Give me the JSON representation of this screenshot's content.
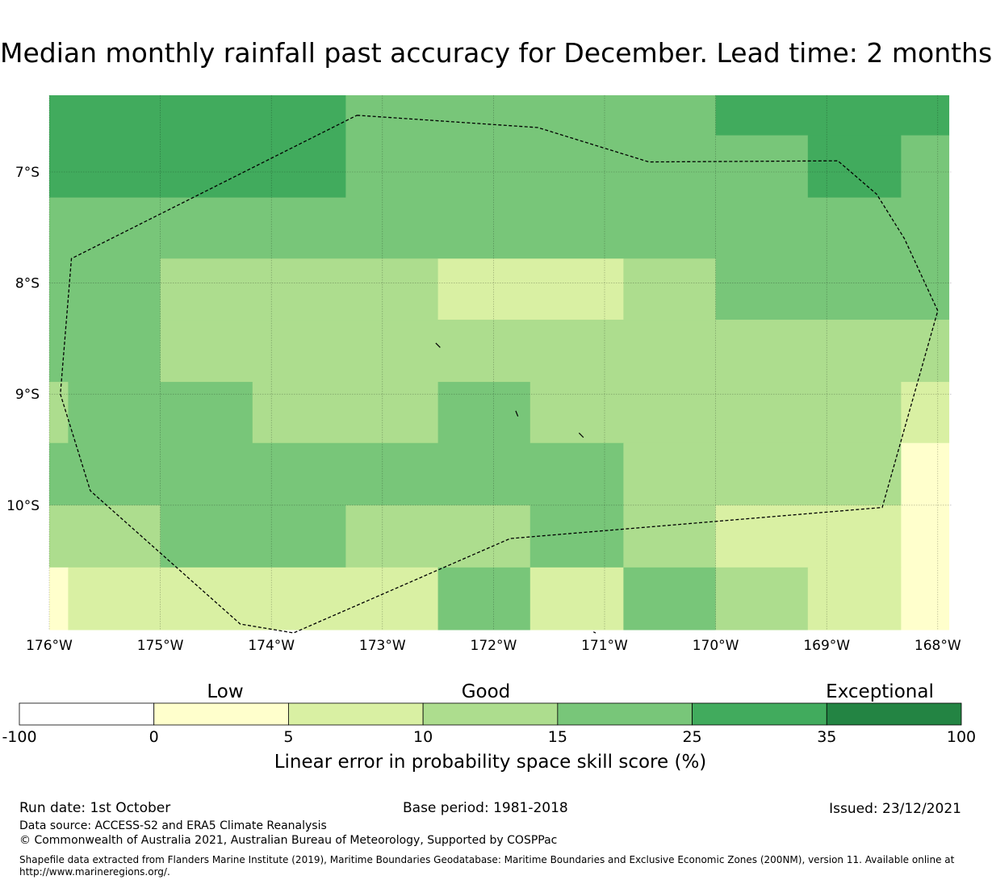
{
  "title": "Median monthly rainfall past accuracy for December. Lead time: 2 months",
  "map": {
    "lon_range": [
      -176,
      -168
    ],
    "lat_range": [
      -6.3,
      -11.2
    ],
    "x_ticks": [
      {
        "value": -176,
        "label": "176°W"
      },
      {
        "value": -175,
        "label": "175°W"
      },
      {
        "value": -174,
        "label": "174°W"
      },
      {
        "value": -173,
        "label": "173°W"
      },
      {
        "value": -172,
        "label": "172°W"
      },
      {
        "value": -171,
        "label": "171°W"
      },
      {
        "value": -170,
        "label": "170°W"
      },
      {
        "value": -169,
        "label": "169°W"
      },
      {
        "value": -168,
        "label": "168°W"
      }
    ],
    "y_ticks": [
      {
        "value": -7,
        "label": "7°S"
      },
      {
        "value": -8,
        "label": "8°S"
      },
      {
        "value": -9,
        "label": "9°S"
      },
      {
        "value": -10,
        "label": "10°S"
      }
    ],
    "skill_cells": [
      {
        "lon": [
          -176,
          -173.33
        ],
        "lat": [
          -6.3,
          -7.23
        ],
        "skill": 30
      },
      {
        "lon": [
          -173.33,
          -170
        ],
        "lat": [
          -6.3,
          -7.23
        ],
        "skill": 20
      },
      {
        "lon": [
          -170,
          -167.9
        ],
        "lat": [
          -6.3,
          -6.67
        ],
        "skill": 30
      },
      {
        "lon": [
          -170,
          -169.17
        ],
        "lat": [
          -6.67,
          -7.23
        ],
        "skill": 20
      },
      {
        "lon": [
          -169.17,
          -168.33
        ],
        "lat": [
          -6.67,
          -7.23
        ],
        "skill": 30
      },
      {
        "lon": [
          -168.33,
          -167.9
        ],
        "lat": [
          -6.67,
          -7.23
        ],
        "skill": 20
      },
      {
        "lon": [
          -176,
          -167.9
        ],
        "lat": [
          -7.23,
          -7.78
        ],
        "skill": 20
      },
      {
        "lon": [
          -176,
          -175
        ],
        "lat": [
          -7.78,
          -8.89
        ],
        "skill": 20
      },
      {
        "lon": [
          -175,
          -172.5
        ],
        "lat": [
          -7.78,
          -8.33
        ],
        "skill": 12
      },
      {
        "lon": [
          -172.5,
          -170.83
        ],
        "lat": [
          -7.78,
          -8.33
        ],
        "skill": 7
      },
      {
        "lon": [
          -170.83,
          -170
        ],
        "lat": [
          -7.78,
          -8.33
        ],
        "skill": 12
      },
      {
        "lon": [
          -170,
          -167.9
        ],
        "lat": [
          -7.78,
          -8.33
        ],
        "skill": 20
      },
      {
        "lon": [
          -175,
          -167.9
        ],
        "lat": [
          -8.33,
          -8.89
        ],
        "skill": 12
      },
      {
        "lon": [
          -176,
          -175.83
        ],
        "lat": [
          -8.89,
          -9.44
        ],
        "skill": 12
      },
      {
        "lon": [
          -175.83,
          -174.17
        ],
        "lat": [
          -8.89,
          -9.44
        ],
        "skill": 20
      },
      {
        "lon": [
          -174.17,
          -172.5
        ],
        "lat": [
          -8.89,
          -9.44
        ],
        "skill": 12
      },
      {
        "lon": [
          -172.5,
          -171.67
        ],
        "lat": [
          -8.89,
          -9.44
        ],
        "skill": 20
      },
      {
        "lon": [
          -171.67,
          -168.33
        ],
        "lat": [
          -8.89,
          -9.44
        ],
        "skill": 12
      },
      {
        "lon": [
          -168.33,
          -167.9
        ],
        "lat": [
          -8.89,
          -9.44
        ],
        "skill": 7
      },
      {
        "lon": [
          -176,
          -170.83
        ],
        "lat": [
          -9.44,
          -10
        ],
        "skill": 20
      },
      {
        "lon": [
          -170.83,
          -168.33
        ],
        "lat": [
          -9.44,
          -10
        ],
        "skill": 12
      },
      {
        "lon": [
          -168.33,
          -167.9
        ],
        "lat": [
          -9.44,
          -10
        ],
        "skill": 2
      },
      {
        "lon": [
          -176,
          -175
        ],
        "lat": [
          -10,
          -10.56
        ],
        "skill": 12
      },
      {
        "lon": [
          -175,
          -173.33
        ],
        "lat": [
          -10,
          -10.56
        ],
        "skill": 20
      },
      {
        "lon": [
          -173.33,
          -171.67
        ],
        "lat": [
          -10,
          -10.56
        ],
        "skill": 12
      },
      {
        "lon": [
          -171.67,
          -170.83
        ],
        "lat": [
          -10,
          -10.56
        ],
        "skill": 20
      },
      {
        "lon": [
          -170.83,
          -170
        ],
        "lat": [
          -10,
          -10.56
        ],
        "skill": 12
      },
      {
        "lon": [
          -170,
          -168.33
        ],
        "lat": [
          -10,
          -10.56
        ],
        "skill": 7
      },
      {
        "lon": [
          -168.33,
          -167.9
        ],
        "lat": [
          -10,
          -10.56
        ],
        "skill": 2
      },
      {
        "lon": [
          -176,
          -175.83
        ],
        "lat": [
          -10.56,
          -11.2
        ],
        "skill": 2
      },
      {
        "lon": [
          -175.83,
          -172.5
        ],
        "lat": [
          -10.56,
          -11.2
        ],
        "skill": 7
      },
      {
        "lon": [
          -172.5,
          -171.67
        ],
        "lat": [
          -10.56,
          -11.2
        ],
        "skill": 20
      },
      {
        "lon": [
          -171.67,
          -170.83
        ],
        "lat": [
          -10.56,
          -11.2
        ],
        "skill": 7
      },
      {
        "lon": [
          -170.83,
          -170
        ],
        "lat": [
          -10.56,
          -11.2
        ],
        "skill": 20
      },
      {
        "lon": [
          -170,
          -169.17
        ],
        "lat": [
          -10.56,
          -11.2
        ],
        "skill": 12
      },
      {
        "lon": [
          -169.17,
          -168.33
        ],
        "lat": [
          -10.56,
          -11.2
        ],
        "skill": 7
      },
      {
        "lon": [
          -168.33,
          -167.9
        ],
        "lat": [
          -10.56,
          -11.2
        ],
        "skill": 2
      }
    ],
    "eez_boundary": [
      [
        -173.23,
        -6.49
      ],
      [
        -171.6,
        -6.6
      ],
      [
        -170.6,
        -6.91
      ],
      [
        -168.9,
        -6.9
      ],
      [
        -168.55,
        -7.2
      ],
      [
        -168.3,
        -7.6
      ],
      [
        -168.0,
        -8.25
      ],
      [
        -168.5,
        -10.02
      ],
      [
        -171.85,
        -10.3
      ],
      [
        -173.8,
        -11.15
      ],
      [
        -174.28,
        -11.07
      ],
      [
        -175.63,
        -9.87
      ],
      [
        -175.9,
        -9.0
      ],
      [
        -175.8,
        -7.78
      ],
      [
        -173.23,
        -6.49
      ]
    ],
    "islands": [
      [
        [
          -172.52,
          -8.54
        ],
        [
          -172.48,
          -8.58
        ]
      ],
      [
        [
          -171.8,
          -9.15
        ],
        [
          -171.78,
          -9.2
        ]
      ],
      [
        [
          -171.23,
          -9.35
        ],
        [
          -171.19,
          -9.39
        ]
      ],
      [
        [
          -171.1,
          -11.14
        ],
        [
          -171.08,
          -11.15
        ]
      ]
    ]
  },
  "colorbar": {
    "bounds": [
      "-100",
      "0",
      "5",
      "10",
      "15",
      "25",
      "35",
      "100"
    ],
    "colors": [
      "#ffffff",
      "#ffffcc",
      "#d9f0a3",
      "#addd8e",
      "#78c679",
      "#41ab5d",
      "#238443"
    ],
    "categories": {
      "low": "Low",
      "good": "Good",
      "exceptional": "Exceptional"
    },
    "label": "Linear error in probability space skill score (%)"
  },
  "footer": {
    "run_date": "Run date: 1st October",
    "base_period": "Base period: 1981-2018",
    "issued": "Issued: 23/12/2021",
    "data_source": "Data source: ACCESS-S2 and ERA5 Climate Reanalysis",
    "copyright": "© Commonwealth of Australia 2021, Australian Bureau of Meteorology, Supported by COSPPac",
    "shapefile_line1": "Shapefile data extracted from Flanders Marine Institute (2019), Maritime Boundaries Geodatabase: Maritime Boundaries and Exclusive Economic Zones (200NM), version 11. Available online at",
    "shapefile_line2": "http://www.marineregions.org/."
  }
}
